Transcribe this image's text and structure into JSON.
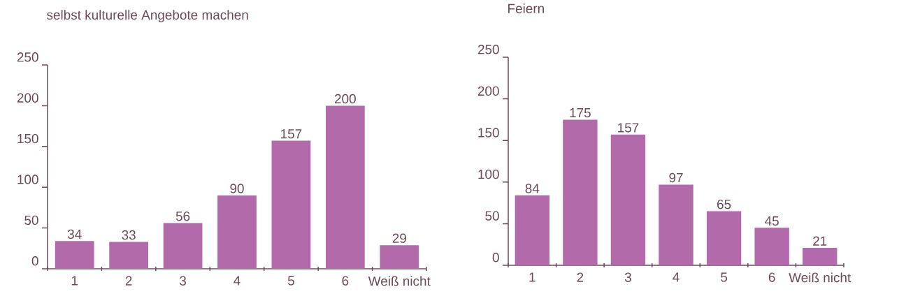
{
  "chart_data": [
    {
      "type": "bar",
      "title": "selbst kulturelle Angebote machen",
      "categories": [
        "1",
        "2",
        "3",
        "4",
        "5",
        "6",
        "Weiß nicht"
      ],
      "values": [
        34,
        33,
        56,
        90,
        157,
        200,
        29
      ],
      "color": "#b36aab",
      "ylim": [
        0,
        250
      ],
      "yticks": [
        0,
        50,
        100,
        150,
        200,
        250
      ],
      "data_labels": true
    },
    {
      "type": "bar",
      "title": "Feiern",
      "categories": [
        "1",
        "2",
        "3",
        "4",
        "5",
        "6",
        "Weiß nicht"
      ],
      "values": [
        84,
        175,
        157,
        97,
        65,
        45,
        21
      ],
      "color": "#b36aab",
      "ylim": [
        0,
        250
      ],
      "yticks": [
        0,
        50,
        100,
        150,
        200,
        250
      ],
      "data_labels": true
    }
  ]
}
